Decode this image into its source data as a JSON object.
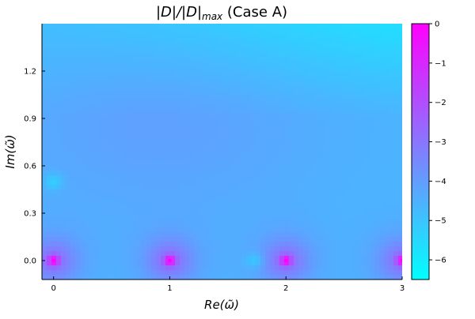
{
  "chart_data": {
    "type": "heatmap",
    "title_parts": {
      "lead": "|D|/|D|",
      "sub": "max",
      "tail": " (Case A)"
    },
    "xlabel": "Re(ω̃)",
    "ylabel": "Im(ω̃)",
    "xlim": [
      -0.1,
      3.0
    ],
    "ylim": [
      -0.12,
      1.5
    ],
    "x_ticks": [
      0,
      1,
      2,
      3
    ],
    "x_tick_labels": [
      "0",
      "1",
      "2",
      "3"
    ],
    "y_ticks": [
      0.0,
      0.3,
      0.6,
      0.9,
      1.2
    ],
    "y_tick_labels": [
      "0.0",
      "0.3",
      "0.6",
      "0.9",
      "1.2"
    ],
    "colorbar": {
      "range": [
        -6.5,
        0
      ],
      "ticks": [
        0,
        -1,
        -2,
        -3,
        -4,
        -5,
        -6
      ],
      "tick_labels": [
        "0",
        "−1",
        "−2",
        "−3",
        "−4",
        "−5",
        "−6"
      ],
      "colormap": [
        "#00ffff",
        "#ff00ff"
      ]
    },
    "maxima": [
      {
        "x": 0,
        "y": 0
      },
      {
        "x": 1,
        "y": 0
      },
      {
        "x": 2,
        "y": 0
      },
      {
        "x": 3,
        "y": 0
      }
    ],
    "minima": [
      {
        "x": 0,
        "y": 0.5
      },
      {
        "x": 1.73,
        "y": 0
      }
    ],
    "grid": false
  }
}
